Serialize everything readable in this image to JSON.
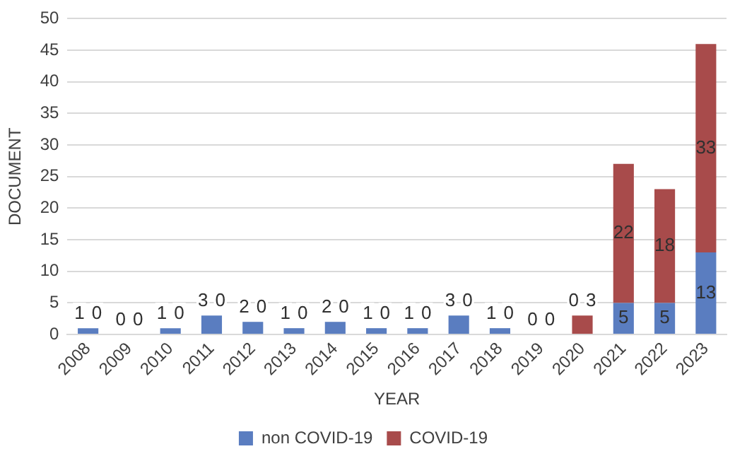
{
  "chart_data": {
    "type": "bar",
    "stacked": true,
    "xlabel": "YEAR",
    "ylabel": "DOCUMENT",
    "categories": [
      "2008",
      "2009",
      "2010",
      "2011",
      "2012",
      "2013",
      "2014",
      "2015",
      "2016",
      "2017",
      "2018",
      "2019",
      "2020",
      "2021",
      "2022",
      "2023"
    ],
    "series": [
      {
        "name": "non COVID-19",
        "color": "#5a7dc0",
        "values": [
          1,
          0,
          1,
          3,
          2,
          1,
          2,
          1,
          1,
          3,
          1,
          0,
          0,
          5,
          5,
          13
        ]
      },
      {
        "name": "COVID-19",
        "color": "#a84b4b",
        "values": [
          0,
          0,
          0,
          0,
          0,
          0,
          0,
          0,
          0,
          0,
          0,
          0,
          3,
          22,
          18,
          33
        ]
      }
    ],
    "ylim": [
      0,
      50
    ],
    "yticks": [
      0,
      5,
      10,
      15,
      20,
      25,
      30,
      35,
      40,
      45,
      50
    ],
    "grid": "y",
    "legend": "bottom",
    "data_labels": true
  }
}
